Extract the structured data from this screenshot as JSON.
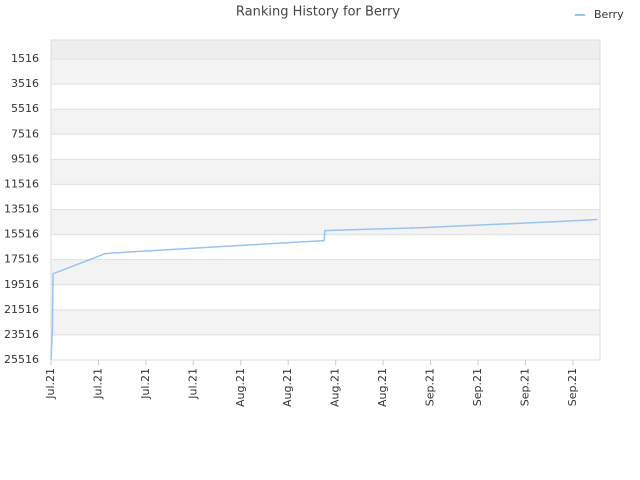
{
  "chart_data": {
    "type": "line",
    "title": "Ranking History for Berry",
    "series": [
      {
        "name": "Berry",
        "color": "#99c4ef",
        "x": [
          0,
          0.2,
          0.3,
          8,
          10,
          15,
          20,
          25,
          30,
          35,
          40.3,
          40.4,
          45,
          50,
          55,
          60,
          65,
          70,
          75,
          80.6
        ],
        "values": [
          25516,
          23196,
          18636,
          17036,
          16956,
          16796,
          16636,
          16476,
          16316,
          16156,
          15996,
          15196,
          15116,
          15036,
          14956,
          14836,
          14716,
          14596,
          14476,
          14316
        ]
      }
    ],
    "xlim": [
      0,
      81
    ],
    "xticks": [
      {
        "value": 0,
        "label": "Jul.21"
      },
      {
        "value": 7,
        "label": "Jul.21"
      },
      {
        "value": 14,
        "label": "Jul.21"
      },
      {
        "value": 21,
        "label": "Jul.21"
      },
      {
        "value": 28,
        "label": "Aug.21"
      },
      {
        "value": 35,
        "label": "Aug.21"
      },
      {
        "value": 42,
        "label": "Aug.21"
      },
      {
        "value": 49,
        "label": "Aug.21"
      },
      {
        "value": 56,
        "label": "Sep.21"
      },
      {
        "value": 63,
        "label": "Sep.21"
      },
      {
        "value": 70,
        "label": "Sep.21"
      },
      {
        "value": 77,
        "label": "Sep.21"
      }
    ],
    "ylim": [
      25516,
      0
    ],
    "yticks": [
      1516,
      3516,
      5516,
      7516,
      9516,
      11516,
      13516,
      15516,
      17516,
      19516,
      21516,
      23516,
      25516
    ],
    "grid": true,
    "legend": "top-right"
  }
}
